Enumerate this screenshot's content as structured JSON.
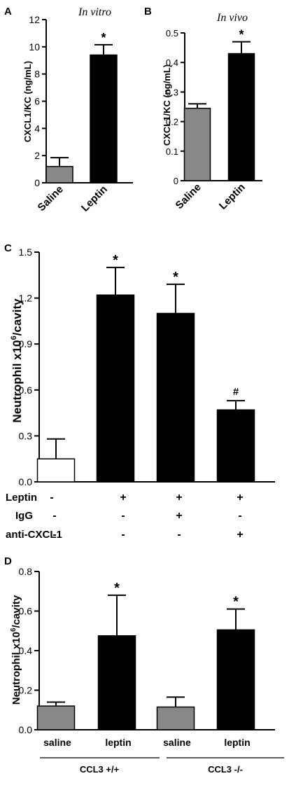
{
  "chart_data": [
    {
      "panel": "A",
      "type": "bar",
      "title": "In vitro",
      "ylabel": "CXCL1/KC (ng/mL)",
      "categories": [
        "Saline",
        "Leptin"
      ],
      "values": [
        1.2,
        9.4
      ],
      "errors": [
        0.65,
        0.75
      ],
      "colors": [
        "#888888",
        "#000000"
      ],
      "annotations": [
        "",
        "*"
      ],
      "ylim": [
        0,
        12
      ],
      "yticks": [
        0,
        2,
        4,
        6,
        8,
        10,
        12
      ],
      "grid": false
    },
    {
      "panel": "B",
      "type": "bar",
      "title": "In vivo",
      "ylabel": "CXCL1/KC (ng/mL)",
      "categories": [
        "Saline",
        "Leptin"
      ],
      "values": [
        0.245,
        0.43
      ],
      "errors": [
        0.015,
        0.04
      ],
      "colors": [
        "#888888",
        "#000000"
      ],
      "annotations": [
        "",
        "*"
      ],
      "ylim": [
        0,
        0.5
      ],
      "yticks": [
        0.0,
        0.1,
        0.2,
        0.3,
        0.4,
        0.5
      ],
      "grid": false
    },
    {
      "panel": "C",
      "type": "bar",
      "ylabel": "Neutrophil x10",
      "ylabel_sup": "6",
      "ylabel_rest": "/cavity",
      "values": [
        0.15,
        1.22,
        1.1,
        0.47
      ],
      "errors": [
        0.13,
        0.18,
        0.19,
        0.06
      ],
      "colors": [
        "#ffffff",
        "#000000",
        "#000000",
        "#000000"
      ],
      "annotations": [
        "",
        "*",
        "*",
        "#"
      ],
      "ylim": [
        0,
        1.5
      ],
      "yticks": [
        "0.0",
        "0.3",
        "0.6",
        "0.9",
        "1.2",
        "1.5"
      ],
      "grid": false,
      "conditions": [
        {
          "label": "Leptin",
          "values": [
            "-",
            "+",
            "+",
            "+"
          ]
        },
        {
          "label": "IgG",
          "values": [
            "-",
            "-",
            "+",
            "-"
          ]
        },
        {
          "label": "anti-CXCL1",
          "values": [
            "-",
            "-",
            "-",
            "+"
          ]
        }
      ]
    },
    {
      "panel": "D",
      "type": "bar",
      "ylabel": "Neutrophil x10",
      "ylabel_sup": "6",
      "ylabel_rest": "/cavity",
      "categories": [
        "saline",
        "leptin",
        "saline",
        "leptin"
      ],
      "values": [
        0.12,
        0.475,
        0.115,
        0.505
      ],
      "errors": [
        0.02,
        0.205,
        0.05,
        0.105
      ],
      "colors": [
        "#888888",
        "#000000",
        "#888888",
        "#000000"
      ],
      "annotations": [
        "",
        "*",
        "",
        "*"
      ],
      "ylim": [
        0,
        0.8
      ],
      "yticks": [
        "0.0",
        "0.2",
        "0.4",
        "0.6",
        "0.8"
      ],
      "grid": false,
      "groups": [
        {
          "label": "CCL3 +/+"
        },
        {
          "label": "CCL3 -/-"
        }
      ]
    }
  ]
}
